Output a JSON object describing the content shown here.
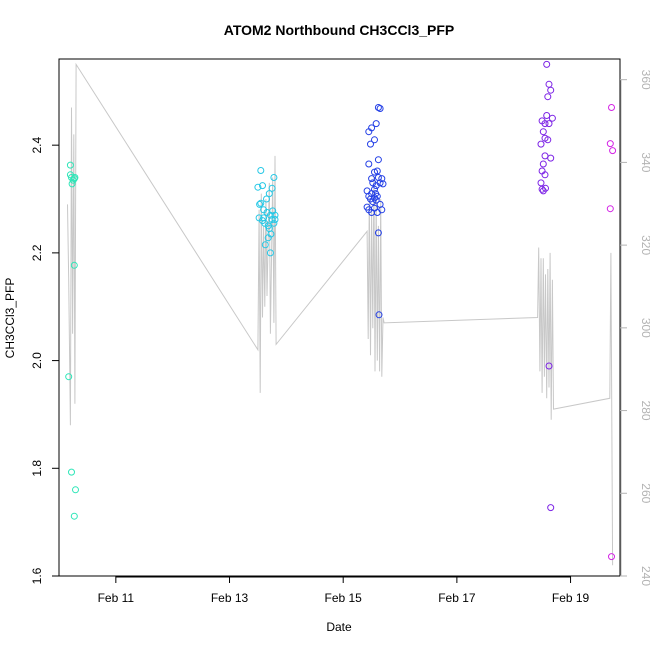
{
  "chart_data": {
    "type": "scatter",
    "title": "ATOM2 Northbound CH3CCl3_PFP",
    "xlabel": "Date",
    "ylabel": "CH3CCl3_PFP",
    "y2label": "",
    "xlim": [
      10.0,
      19.87
    ],
    "ylim": [
      1.6,
      2.56
    ],
    "y2lim": [
      240.0,
      365.0
    ],
    "x_ticks": [
      {
        "value": 11,
        "label": "Feb 11"
      },
      {
        "value": 13,
        "label": "Feb 13"
      },
      {
        "value": 15,
        "label": "Feb 15"
      },
      {
        "value": 17,
        "label": "Feb 17"
      },
      {
        "value": 19,
        "label": "Feb 19"
      }
    ],
    "y_ticks": [
      {
        "value": 1.6,
        "label": "1.6"
      },
      {
        "value": 1.8,
        "label": "1.8"
      },
      {
        "value": 2.0,
        "label": "2.0"
      },
      {
        "value": 2.2,
        "label": "2.2"
      },
      {
        "value": 2.4,
        "label": "2.4"
      }
    ],
    "y2_ticks": [
      {
        "value": 240,
        "label": "240"
      },
      {
        "value": 260,
        "label": "260"
      },
      {
        "value": 280,
        "label": "280"
      },
      {
        "value": 300,
        "label": "300"
      },
      {
        "value": 320,
        "label": "320"
      },
      {
        "value": 340,
        "label": "340"
      },
      {
        "value": 360,
        "label": "360"
      }
    ],
    "line_color": "#c8c8c8",
    "marker": "open-circle",
    "series": [
      {
        "color": "#2ee6b8",
        "points": [
          [
            10.2,
            2.363
          ],
          [
            10.2,
            2.345
          ],
          [
            10.22,
            2.34
          ],
          [
            10.25,
            2.335
          ],
          [
            10.27,
            2.338
          ],
          [
            10.23,
            2.328
          ],
          [
            10.28,
            2.34
          ],
          [
            10.27,
            2.177
          ],
          [
            10.17,
            1.97
          ],
          [
            10.22,
            1.793
          ],
          [
            10.29,
            1.76
          ],
          [
            10.27,
            1.711
          ]
        ]
      },
      {
        "color": "#26c8e6",
        "points": [
          [
            13.55,
            2.353
          ],
          [
            13.5,
            2.322
          ],
          [
            13.58,
            2.325
          ],
          [
            13.53,
            2.29
          ],
          [
            13.55,
            2.292
          ],
          [
            13.6,
            2.28
          ],
          [
            13.65,
            2.3
          ],
          [
            13.7,
            2.31
          ],
          [
            13.75,
            2.32
          ],
          [
            13.78,
            2.34
          ],
          [
            13.52,
            2.265
          ],
          [
            13.58,
            2.26
          ],
          [
            13.62,
            2.255
          ],
          [
            13.68,
            2.25
          ],
          [
            13.72,
            2.27
          ],
          [
            13.75,
            2.262
          ],
          [
            13.78,
            2.255
          ],
          [
            13.8,
            2.27
          ],
          [
            13.7,
            2.245
          ],
          [
            13.73,
            2.235
          ],
          [
            13.68,
            2.228
          ],
          [
            13.63,
            2.215
          ],
          [
            13.72,
            2.2
          ],
          [
            13.66,
            2.275
          ],
          [
            13.6,
            2.265
          ],
          [
            13.76,
            2.278
          ],
          [
            13.8,
            2.262
          ]
        ]
      },
      {
        "color": "#2440e6",
        "points": [
          [
            15.45,
            2.425
          ],
          [
            15.5,
            2.432
          ],
          [
            15.48,
            2.402
          ],
          [
            15.55,
            2.41
          ],
          [
            15.58,
            2.44
          ],
          [
            15.62,
            2.47
          ],
          [
            15.65,
            2.468
          ],
          [
            15.62,
            2.373
          ],
          [
            15.45,
            2.365
          ],
          [
            15.55,
            2.35
          ],
          [
            15.6,
            2.352
          ],
          [
            15.5,
            2.338
          ],
          [
            15.52,
            2.33
          ],
          [
            15.58,
            2.325
          ],
          [
            15.62,
            2.34
          ],
          [
            15.65,
            2.33
          ],
          [
            15.68,
            2.338
          ],
          [
            15.7,
            2.328
          ],
          [
            15.42,
            2.315
          ],
          [
            15.45,
            2.305
          ],
          [
            15.5,
            2.31
          ],
          [
            15.55,
            2.318
          ],
          [
            15.58,
            2.298
          ],
          [
            15.6,
            2.305
          ],
          [
            15.48,
            2.3
          ],
          [
            15.52,
            2.295
          ],
          [
            15.55,
            2.302
          ],
          [
            15.57,
            2.31
          ],
          [
            15.42,
            2.285
          ],
          [
            15.45,
            2.28
          ],
          [
            15.5,
            2.275
          ],
          [
            15.55,
            2.283
          ],
          [
            15.65,
            2.29
          ],
          [
            15.68,
            2.28
          ],
          [
            15.6,
            2.275
          ],
          [
            15.62,
            2.237
          ],
          [
            15.63,
            2.085
          ]
        ]
      },
      {
        "color": "#7d24e6",
        "points": [
          [
            18.58,
            2.55
          ],
          [
            18.62,
            2.513
          ],
          [
            18.65,
            2.502
          ],
          [
            18.6,
            2.49
          ],
          [
            18.58,
            2.455
          ],
          [
            18.5,
            2.445
          ],
          [
            18.55,
            2.44
          ],
          [
            18.62,
            2.44
          ],
          [
            18.68,
            2.45
          ],
          [
            18.52,
            2.425
          ],
          [
            18.55,
            2.413
          ],
          [
            18.6,
            2.41
          ],
          [
            18.48,
            2.402
          ],
          [
            18.55,
            2.38
          ],
          [
            18.65,
            2.376
          ],
          [
            18.52,
            2.365
          ],
          [
            18.5,
            2.352
          ],
          [
            18.55,
            2.345
          ],
          [
            18.48,
            2.33
          ],
          [
            18.5,
            2.318
          ],
          [
            18.52,
            2.315
          ],
          [
            18.56,
            2.32
          ],
          [
            18.62,
            1.99
          ],
          [
            18.65,
            1.727
          ]
        ]
      },
      {
        "color": "#d424e6",
        "points": [
          [
            19.72,
            2.47
          ],
          [
            19.7,
            2.403
          ],
          [
            19.74,
            2.39
          ],
          [
            19.7,
            2.282
          ],
          [
            19.72,
            1.636
          ]
        ]
      }
    ],
    "line_points": [
      [
        10.15,
        2.29
      ],
      [
        10.17,
        2.15
      ],
      [
        10.2,
        1.88
      ],
      [
        10.22,
        2.47
      ],
      [
        10.24,
        2.05
      ],
      [
        10.26,
        2.42
      ],
      [
        10.28,
        1.92
      ],
      [
        10.3,
        2.55
      ],
      [
        13.5,
        2.02
      ],
      [
        13.52,
        2.28
      ],
      [
        13.54,
        1.94
      ],
      [
        13.56,
        2.31
      ],
      [
        13.58,
        2.08
      ],
      [
        13.6,
        2.25
      ],
      [
        13.62,
        2.1
      ],
      [
        13.64,
        2.3
      ],
      [
        13.66,
        2.12
      ],
      [
        13.7,
        2.33
      ],
      [
        13.72,
        2.05
      ],
      [
        13.76,
        2.34
      ],
      [
        13.78,
        2.07
      ],
      [
        13.8,
        2.38
      ],
      [
        13.82,
        2.03
      ],
      [
        15.42,
        2.24
      ],
      [
        15.44,
        2.04
      ],
      [
        15.46,
        2.3
      ],
      [
        15.48,
        2.01
      ],
      [
        15.5,
        2.28
      ],
      [
        15.52,
        2.06
      ],
      [
        15.54,
        2.34
      ],
      [
        15.56,
        1.98
      ],
      [
        15.58,
        2.3
      ],
      [
        15.6,
        2.0
      ],
      [
        15.62,
        2.25
      ],
      [
        15.64,
        1.98
      ],
      [
        15.66,
        2.3
      ],
      [
        15.68,
        1.97
      ],
      [
        15.7,
        2.08
      ],
      [
        15.72,
        2.07
      ],
      [
        18.42,
        2.08
      ],
      [
        18.44,
        2.21
      ],
      [
        18.46,
        1.98
      ],
      [
        18.48,
        2.19
      ],
      [
        18.5,
        1.94
      ],
      [
        18.52,
        2.19
      ],
      [
        18.54,
        1.97
      ],
      [
        18.56,
        2.16
      ],
      [
        18.58,
        1.93
      ],
      [
        18.6,
        2.17
      ],
      [
        18.62,
        1.95
      ],
      [
        18.64,
        2.2
      ],
      [
        18.66,
        1.89
      ],
      [
        18.68,
        2.15
      ],
      [
        18.7,
        1.91
      ],
      [
        19.69,
        1.93
      ],
      [
        19.71,
        2.2
      ],
      [
        19.74,
        1.62
      ]
    ]
  }
}
